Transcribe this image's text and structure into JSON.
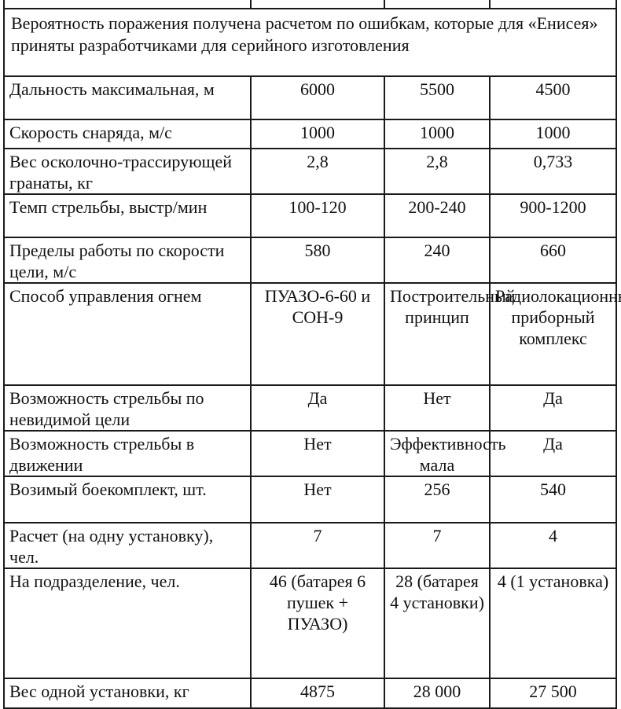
{
  "note": "Вероятность поражения получена расчетом по ошибкам, которые для «Енисея» приняты разработчиками для серийного изготовления",
  "rows": [
    {
      "label": "Дальность максимальная, м",
      "values": [
        "6000",
        "5500",
        "4500"
      ],
      "h": 55
    },
    {
      "label": "Скорость снаряда, м/с",
      "values": [
        "1000",
        "1000",
        "1000"
      ],
      "h": 37
    },
    {
      "label": "Вес осколочно-трассирующей гранаты, кг",
      "values": [
        "2,8",
        "2,8",
        "0,733"
      ],
      "h": 55
    },
    {
      "label": "Темп стрельбы, выстр/мин",
      "values": [
        "100-120",
        "200-240",
        "900-1200"
      ],
      "h": 55
    },
    {
      "label": "Пределы работы по скорости цели, м/с",
      "values": [
        "580",
        "240",
        "660"
      ],
      "h": 55
    },
    {
      "label": "Способ управления огнем",
      "values": [
        "ПУАЗО-6-60 и СОН-9",
        "Построительный принцип",
        "Радиолокационный приборный комплекс"
      ],
      "h": 130
    },
    {
      "label": "Возможность стрельбы по невидимой цели",
      "values": [
        "Да",
        "Нет",
        "Да"
      ],
      "h": 55
    },
    {
      "label": "Возможность стрельбы в движении",
      "values": [
        "Нет",
        "Эффективность мала",
        "Да"
      ],
      "h": 56
    },
    {
      "label": "Возимый боекомплект, шт.",
      "values": [
        "Нет",
        "256",
        "540"
      ],
      "h": 59
    },
    {
      "label": "Расчет (на одну установку), чел.",
      "values": [
        "7",
        "7",
        "4"
      ],
      "h": 55
    },
    {
      "label": "На подразделение, чел.",
      "values": [
        "46 (батарея 6 пушек + ПУАЗО)",
        "28 (батарея 4 установки)",
        "4 (1 установка)"
      ],
      "h": 140
    },
    {
      "label": "Вес одной установки, кг",
      "values": [
        "4875",
        "28 000",
        "27 500"
      ],
      "h": 38
    }
  ]
}
